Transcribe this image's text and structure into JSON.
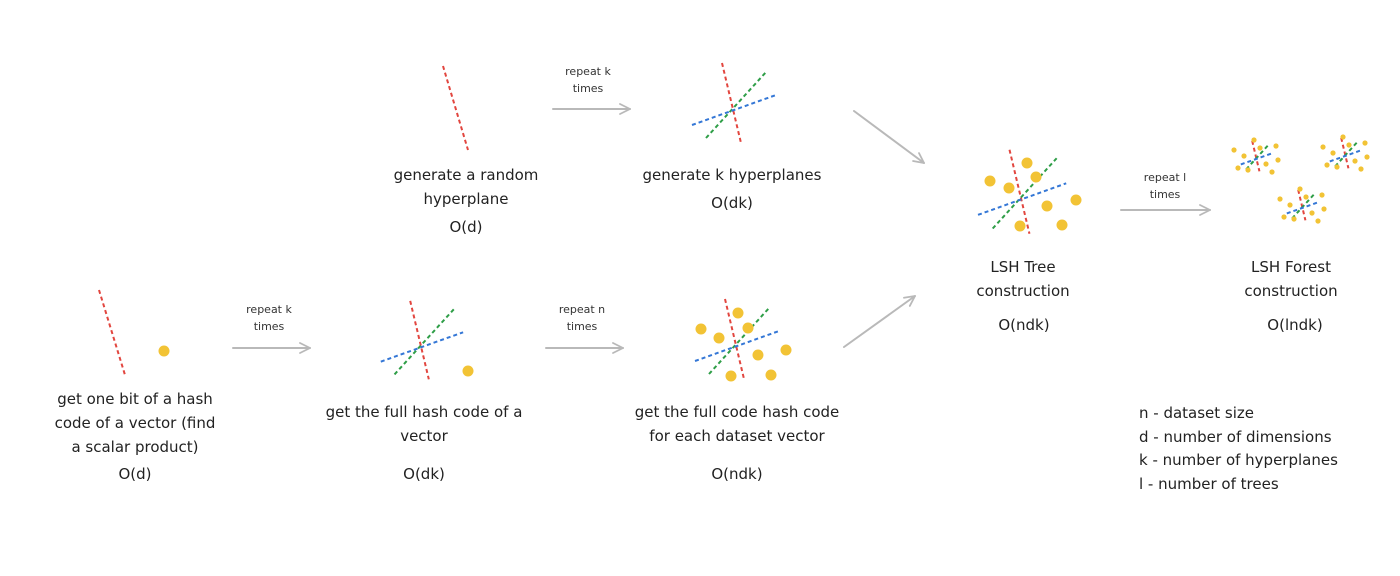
{
  "colors": {
    "red": "#e2463f",
    "green": "#2e9e47",
    "blue": "#3477d6",
    "dot": "#f2c335",
    "arrow": "#b9b9b9",
    "text": "#222222"
  },
  "steps": {
    "random_hyperplane": {
      "label_1": "generate a random",
      "label_2": "hyperplane",
      "complexity": "O(d)"
    },
    "k_hyperplanes": {
      "label_1": "generate k hyperplanes",
      "complexity": "O(dk)"
    },
    "one_bit": {
      "label_1": "get one bit of a hash",
      "label_2": "code of a vector (find",
      "label_3": "a scalar product)",
      "complexity": "O(d)"
    },
    "full_hash": {
      "label_1": "get the full hash code of a",
      "label_2": "vector",
      "complexity": "O(dk)"
    },
    "dataset_hash": {
      "label_1": "get the full code hash code",
      "label_2": "for each dataset vector",
      "complexity": "O(ndk)"
    },
    "lsh_tree": {
      "label_1": "LSH Tree",
      "label_2": "construction",
      "complexity": "O(ndk)"
    },
    "lsh_forest": {
      "label_1": "LSH Forest",
      "label_2": "construction",
      "complexity": "O(lndk)"
    }
  },
  "repeats": {
    "top_k": {
      "line_1": "repeat k",
      "line_2": "times"
    },
    "bottom_k": {
      "line_1": "repeat k",
      "line_2": "times"
    },
    "bottom_n": {
      "line_1": "repeat n",
      "line_2": "times"
    },
    "tree_l": {
      "line_1": "repeat l",
      "line_2": "times"
    }
  },
  "legend": [
    "n - dataset size",
    "d - number of dimensions",
    "k - number of hyperplanes",
    "l - number of trees"
  ]
}
